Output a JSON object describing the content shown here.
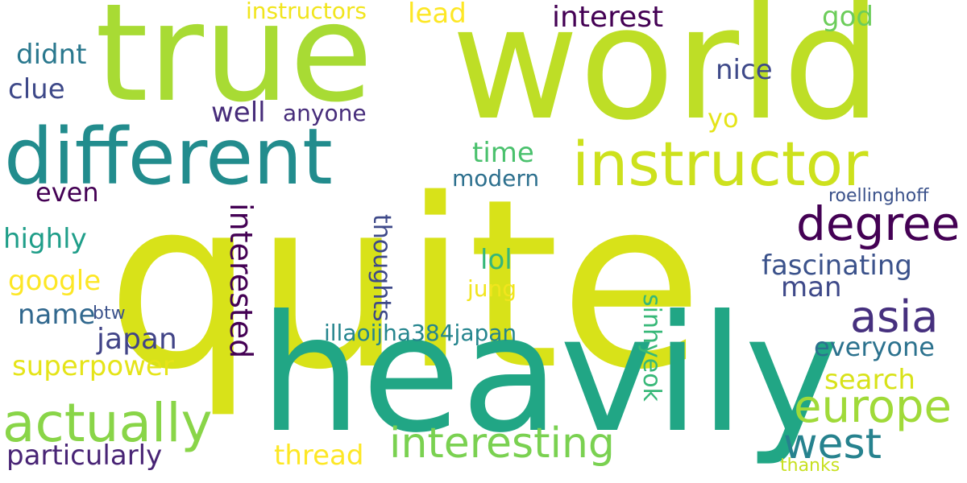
{
  "cloud": {
    "words": [
      {
        "text": "true",
        "color": "#a8db34"
      },
      {
        "text": "world",
        "color": "#bede26"
      },
      {
        "text": "quite",
        "color": "#d8e219"
      },
      {
        "text": "heavily",
        "color": "#21a685"
      },
      {
        "text": "different",
        "color": "#228c8d"
      },
      {
        "text": "instructor",
        "color": "#cde11d"
      },
      {
        "text": "actually",
        "color": "#89d548"
      },
      {
        "text": "degree",
        "color": "#440154"
      },
      {
        "text": "asia",
        "color": "#46307e"
      },
      {
        "text": "interesting",
        "color": "#7ad151"
      },
      {
        "text": "europe",
        "color": "#a0da39"
      },
      {
        "text": "west",
        "color": "#26828e"
      },
      {
        "text": "fascinating",
        "color": "#3b528b"
      },
      {
        "text": "particularly",
        "color": "#482475"
      },
      {
        "text": "interest",
        "color": "#440154"
      },
      {
        "text": "everyone",
        "color": "#2c728e"
      },
      {
        "text": "search",
        "color": "#d8e219"
      },
      {
        "text": "man",
        "color": "#3e4989"
      },
      {
        "text": "japan",
        "color": "#414487"
      },
      {
        "text": "superpower",
        "color": "#e5e419"
      },
      {
        "text": "thread",
        "color": "#fde725"
      },
      {
        "text": "google",
        "color": "#fde725"
      },
      {
        "text": "highly",
        "color": "#1f9e89"
      },
      {
        "text": "didnt",
        "color": "#2a788e"
      },
      {
        "text": "clue",
        "color": "#3e4989"
      },
      {
        "text": "name",
        "color": "#31688e"
      },
      {
        "text": "nice",
        "color": "#3e4989"
      },
      {
        "text": "well",
        "color": "#472c7a"
      },
      {
        "text": "even",
        "color": "#440154"
      },
      {
        "text": "lol",
        "color": "#35b779"
      },
      {
        "text": "time",
        "color": "#4ac16d"
      },
      {
        "text": "lead",
        "color": "#fde725"
      },
      {
        "text": "god",
        "color": "#6ccd5a"
      },
      {
        "text": "yo",
        "color": "#e5e419"
      },
      {
        "text": "instructors",
        "color": "#f1e51d"
      },
      {
        "text": "anyone",
        "color": "#472d7b"
      },
      {
        "text": "modern",
        "color": "#2d708e"
      },
      {
        "text": "illaoijha384japan",
        "color": "#25858e"
      },
      {
        "text": "jung",
        "color": "#f1e51d"
      },
      {
        "text": "roellinghoff",
        "color": "#3b528b"
      },
      {
        "text": "btw",
        "color": "#3b528b"
      },
      {
        "text": "thanks",
        "color": "#c8e020"
      },
      {
        "text": "interested",
        "color": "#440154"
      },
      {
        "text": "thoughts",
        "color": "#3e4989"
      },
      {
        "text": "sinhyeok",
        "color": "#37b878"
      }
    ]
  }
}
